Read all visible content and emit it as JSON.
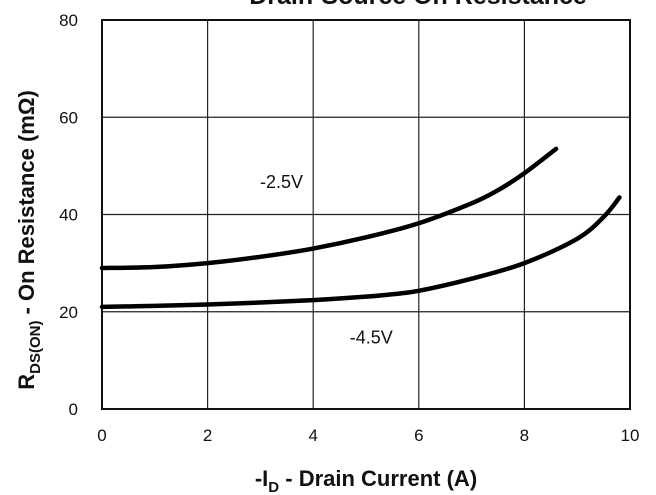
{
  "chart_data": {
    "type": "line",
    "title": "Drain-Source On Resistance",
    "xlabel": {
      "main": "-I",
      "sub": "D",
      "rest": " - Drain Current (A)"
    },
    "ylabel": {
      "main": "R",
      "sub": "DS(ON)",
      "rest": " - On Resistance (mΩ)"
    },
    "xlim": [
      0,
      10
    ],
    "ylim": [
      0,
      80
    ],
    "xticks": [
      0,
      2,
      4,
      6,
      8,
      10
    ],
    "yticks": [
      0,
      20,
      40,
      60,
      80
    ],
    "grid": true,
    "series": [
      {
        "name": "-2.5V",
        "x": [
          0,
          1,
          2,
          3,
          4,
          5,
          6,
          7,
          7.5,
          8,
          8.6
        ],
        "y": [
          29,
          29.2,
          30,
          31.3,
          33,
          35.3,
          38.2,
          42.3,
          45,
          48.5,
          53.5
        ]
      },
      {
        "name": "-4.5V",
        "x": [
          0,
          1,
          2,
          3,
          4,
          5,
          5.5,
          6,
          7,
          8,
          9,
          9.5,
          9.8
        ],
        "y": [
          21,
          21.2,
          21.5,
          21.9,
          22.4,
          23.1,
          23.6,
          24.3,
          26.8,
          30,
          35,
          39.5,
          43.5
        ]
      }
    ],
    "series_label_positions": [
      {
        "x": 3.4,
        "y": 45.5
      },
      {
        "x": 5.1,
        "y": 13.5
      }
    ]
  }
}
